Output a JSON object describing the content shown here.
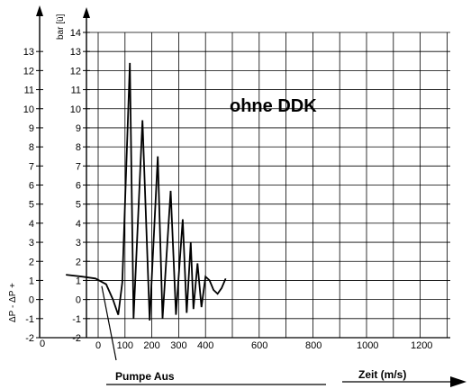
{
  "chart_data": {
    "type": "line",
    "annotation": "ohne DDK",
    "unit_label": "bar [ü]",
    "side_label": "ΔP - ΔP +",
    "bottom_left_label": "Pumpe Aus",
    "bottom_right_label": "Zeit (m/s)",
    "x_ticks": [
      "0",
      "100",
      "200",
      "300",
      "400",
      "600",
      "800",
      "1000",
      "1200"
    ],
    "x_tick_values": [
      0,
      100,
      200,
      300,
      400,
      600,
      800,
      1000,
      1200
    ],
    "outer_x_tick": "0",
    "y_ticks": [
      "14",
      "13",
      "12",
      "11",
      "10",
      "9",
      "8",
      "7",
      "6",
      "5",
      "4",
      "3",
      "2",
      "1",
      "0",
      "-1",
      "-2"
    ],
    "outer_y_ticks": [
      "13",
      "12",
      "11",
      "10",
      "9",
      "8",
      "7",
      "6",
      "5",
      "4",
      "3",
      "2",
      "1",
      "0",
      "-1",
      "-2"
    ],
    "ylim": [
      -2,
      14
    ],
    "grid": true,
    "series": [
      {
        "x": [
          -120,
          -60,
          -10,
          30,
          55,
          75,
          90,
          118,
          132,
          165,
          192,
          222,
          240,
          270,
          290,
          315,
          330,
          345,
          355,
          370,
          385,
          400,
          415,
          430,
          445,
          460,
          475
        ],
        "y": [
          1.3,
          1.2,
          1.1,
          0.8,
          0,
          -0.8,
          0.9,
          12.4,
          -1.0,
          9.4,
          -1.1,
          7.5,
          -1.0,
          5.7,
          -0.8,
          4.2,
          -0.7,
          3.0,
          -0.5,
          1.9,
          -0.4,
          1.2,
          1.0,
          0.5,
          0.3,
          0.6,
          1.1
        ]
      }
    ]
  }
}
